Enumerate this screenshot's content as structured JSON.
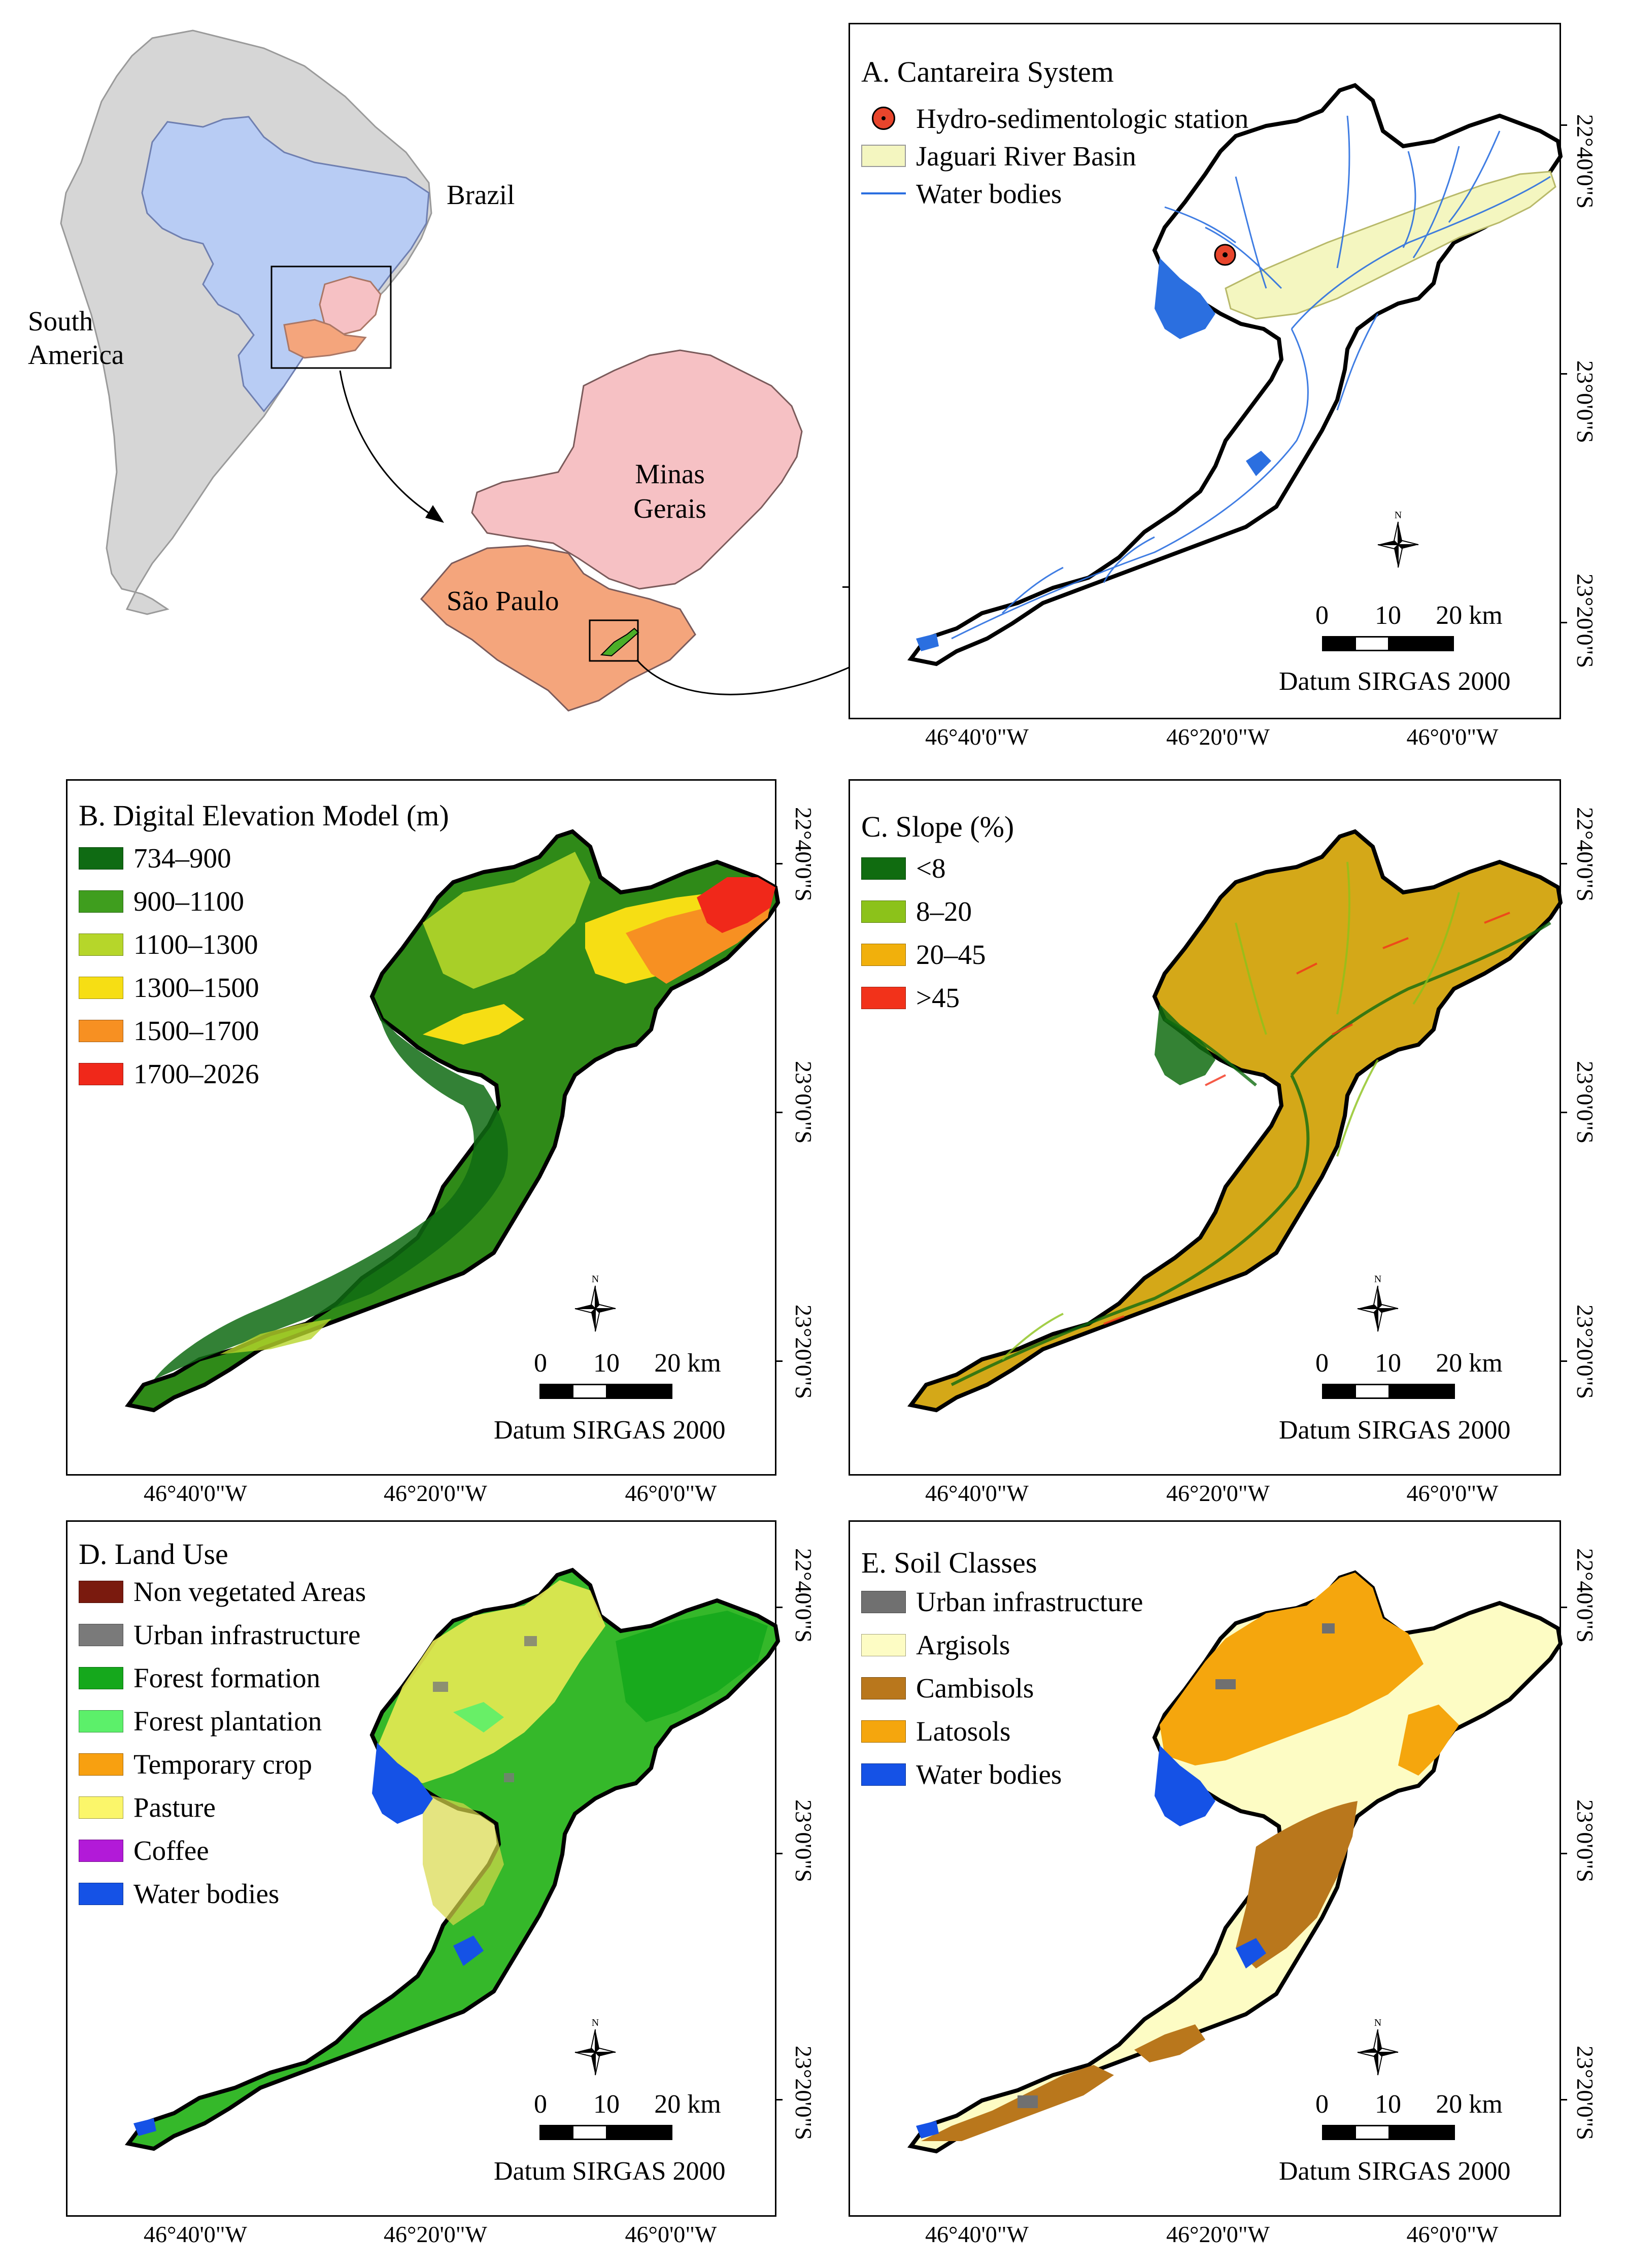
{
  "overview": {
    "labels": {
      "brazil": "Brazil",
      "south_america": "South America",
      "minas_gerais": "Minas Gerais",
      "sao_paulo": "São Paulo"
    },
    "colors": {
      "continent": "#d6d6d6",
      "brazil": "#b8ccf4",
      "minas": "#f6c1c4",
      "saopaulo": "#f4a57c",
      "basin": "#4caf28"
    }
  },
  "scale_bar": {
    "labels": [
      "0",
      "10",
      "20 km"
    ],
    "datum": "Datum SIRGAS 2000"
  },
  "north_arrow": {
    "letter": "N"
  },
  "graticule": {
    "lat_labels": [
      "22°40'0\"S",
      "23°0'0\"S",
      "23°20'0\"S"
    ],
    "lon_labels": [
      "46°40'0\"W",
      "46°20'0\"W",
      "46°0'0\"W"
    ]
  },
  "panels": {
    "a": {
      "title": "A. Cantareira System",
      "legend": [
        {
          "label": "Hydro-sedimentologic station",
          "icon": "station-icon",
          "color": "#e8452c"
        },
        {
          "label": "Jaguari River Basin",
          "icon": "basin-swatch",
          "color": "#f4f6c0"
        },
        {
          "label": "Water bodies",
          "icon": "water-line",
          "color": "#2b6fe0"
        }
      ]
    },
    "b": {
      "title": "B. Digital Elevation Model (m)",
      "legend": [
        {
          "label": "734–900",
          "color": "#0f6b13"
        },
        {
          "label": "900–1100",
          "color": "#3f9e1e"
        },
        {
          "label": "1100–1300",
          "color": "#b6d62a"
        },
        {
          "label": "1300–1500",
          "color": "#f6de14"
        },
        {
          "label": "1500–1700",
          "color": "#f79022"
        },
        {
          "label": "1700–2026",
          "color": "#f0281a"
        }
      ]
    },
    "c": {
      "title": "C. Slope (%)",
      "legend": [
        {
          "label": "<8",
          "color": "#106c10"
        },
        {
          "label": "8–20",
          "color": "#8cc21a"
        },
        {
          "label": "20–45",
          "color": "#f1b00c"
        },
        {
          "label": ">45",
          "color": "#f2321a"
        }
      ]
    },
    "d": {
      "title": "D. Land Use",
      "legend": [
        {
          "label": "Non vegetated Areas",
          "color": "#7a1a0e"
        },
        {
          "label": "Urban infrastructure",
          "color": "#7a7a7a"
        },
        {
          "label": "Forest formation",
          "color": "#15a81c"
        },
        {
          "label": "Forest plantation",
          "color": "#5cf06a"
        },
        {
          "label": "Temporary crop",
          "color": "#f8a010"
        },
        {
          "label": "Pasture",
          "color": "#fbf66a"
        },
        {
          "label": "Coffee",
          "color": "#b21ad8"
        },
        {
          "label": "Water bodies",
          "color": "#1552e6"
        }
      ]
    },
    "e": {
      "title": "E. Soil Classes",
      "legend": [
        {
          "label": "Urban infrastructure",
          "color": "#707070"
        },
        {
          "label": "Argisols",
          "color": "#fdfcc4"
        },
        {
          "label": "Cambisols",
          "color": "#b9771c"
        },
        {
          "label": "Latosols",
          "color": "#f5a60d"
        },
        {
          "label": "Water bodies",
          "color": "#1552e6"
        }
      ]
    }
  }
}
